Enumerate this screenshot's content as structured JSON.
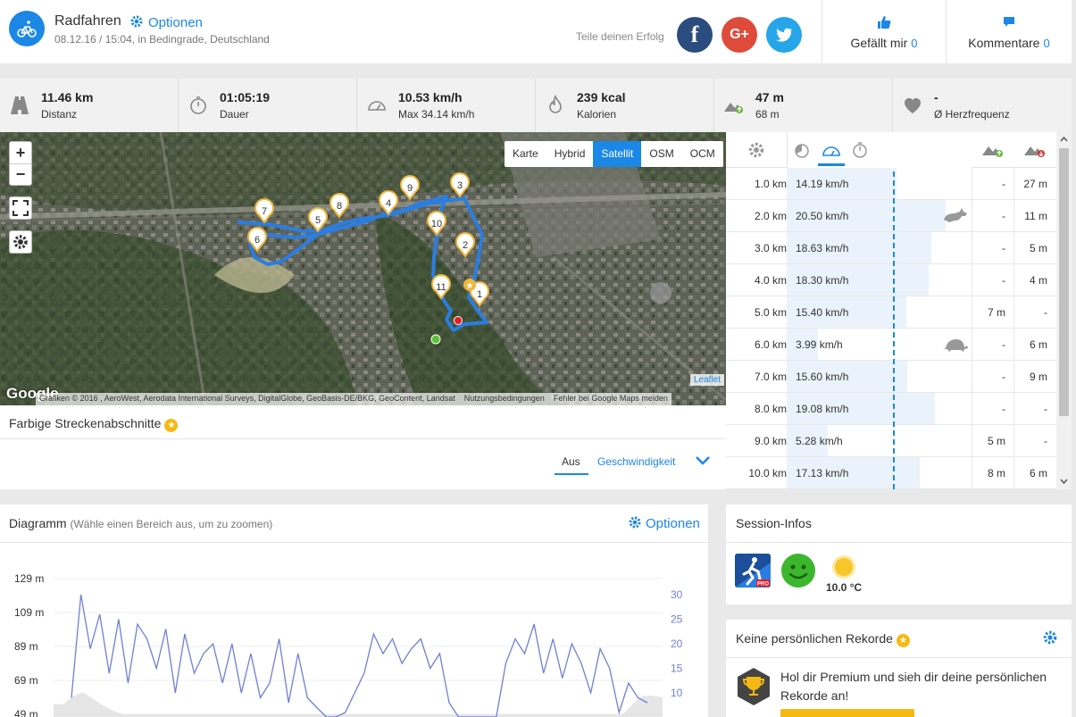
{
  "header": {
    "title": "Radfahren",
    "options_label": "Optionen",
    "subtitle": "08.12.16 / 15:04, in Bedingrade, Deutschland",
    "share_label": "Teile deinen Erfolg",
    "social": {
      "facebook": "f",
      "google": "G+",
      "twitter": "t"
    },
    "likes_label": "Gefällt mir",
    "likes_count": "0",
    "comments_label": "Kommentare",
    "comments_count": "0"
  },
  "stats": [
    {
      "icon": "road-icon",
      "value": "11.46 km",
      "label": "Distanz"
    },
    {
      "icon": "stopwatch-icon",
      "value": "01:05:19",
      "label": "Dauer"
    },
    {
      "icon": "speedometer-icon",
      "value": "10.53 km/h",
      "label": "Max 34.14 km/h"
    },
    {
      "icon": "flame-icon",
      "value": "239 kcal",
      "label": "Kalorien"
    },
    {
      "icon": "elevation-icon",
      "value": "47 m",
      "label": "68 m"
    },
    {
      "icon": "heart-icon",
      "value": "-",
      "label": "Ø Herzfrequenz"
    }
  ],
  "map": {
    "zoom_in": "+",
    "zoom_out": "−",
    "layers": [
      "Karte",
      "Hybrid",
      "Satellit",
      "OSM",
      "OCM"
    ],
    "active_layer": "Satellit",
    "markers": [
      "1",
      "2",
      "3",
      "4",
      "5",
      "6",
      "7",
      "8",
      "9",
      "10",
      "11"
    ],
    "google_logo": "Google",
    "attribution": "Grafiken © 2016 , AeroWest, Aerodata International Surveys, DigitalGlobe, GeoBasis-DE/BKG, GeoContent, Landsat",
    "terms": "Nutzungsbedingungen",
    "report": "Fehler bei Google Maps melden",
    "leaflet": "Leaflet"
  },
  "segments": {
    "title": "Farbige Streckenabschnitte",
    "star": "★",
    "tab_off": "Aus",
    "tab_speed": "Geschwindigkeit"
  },
  "splits": {
    "rows": [
      {
        "km": "1.0 km",
        "speed": "14.19 km/h",
        "speed_value": 14.19,
        "up": "-",
        "down": "27 m",
        "badge": ""
      },
      {
        "km": "2.0 km",
        "speed": "20.50 km/h",
        "speed_value": 20.5,
        "up": "-",
        "down": "11 m",
        "badge": "rabbit-icon"
      },
      {
        "km": "3.0 km",
        "speed": "18.63 km/h",
        "speed_value": 18.63,
        "up": "-",
        "down": "5 m",
        "badge": ""
      },
      {
        "km": "4.0 km",
        "speed": "18.30 km/h",
        "speed_value": 18.3,
        "up": "-",
        "down": "4 m",
        "badge": ""
      },
      {
        "km": "5.0 km",
        "speed": "15.40 km/h",
        "speed_value": 15.4,
        "up": "7 m",
        "down": "-",
        "badge": ""
      },
      {
        "km": "6.0 km",
        "speed": "3.99 km/h",
        "speed_value": 3.99,
        "up": "-",
        "down": "6 m",
        "badge": "turtle-icon"
      },
      {
        "km": "7.0 km",
        "speed": "15.60 km/h",
        "speed_value": 15.6,
        "up": "-",
        "down": "9 m",
        "badge": ""
      },
      {
        "km": "8.0 km",
        "speed": "19.08 km/h",
        "speed_value": 19.08,
        "up": "-",
        "down": "-",
        "badge": ""
      },
      {
        "km": "9.0 km",
        "speed": "5.28 km/h",
        "speed_value": 5.28,
        "up": "5 m",
        "down": "-",
        "badge": ""
      },
      {
        "km": "10.0 km",
        "speed": "17.13 km/h",
        "speed_value": 17.13,
        "up": "8 m",
        "down": "6 m",
        "badge": ""
      }
    ],
    "average_speed": 10.53
  },
  "diagram": {
    "title": "Diagramm",
    "hint": "(Wähle einen Bereich aus, um zu zoomen)",
    "options_label": "Optionen"
  },
  "chart_data": {
    "type": "line",
    "title": "",
    "left_ticks": [
      "129 m",
      "109 m",
      "89 m",
      "69 m",
      "49 m"
    ],
    "right_ticks": [
      "30",
      "25",
      "20",
      "15",
      "10"
    ],
    "left_ylim": [
      49,
      129
    ],
    "right_ylim": [
      10,
      30
    ],
    "series": [
      {
        "axis": "right",
        "color": "#6f7fd6",
        "values": [
          9,
          30,
          19,
          26,
          14,
          25,
          12,
          24,
          21,
          15,
          23,
          10,
          22,
          14,
          18,
          20,
          12,
          20,
          10,
          18,
          9,
          12,
          21,
          8,
          18,
          9,
          7,
          4,
          1,
          6,
          10,
          14,
          22,
          18,
          21,
          16,
          19,
          21,
          15,
          18,
          8,
          3,
          1,
          2,
          2,
          5,
          16,
          21,
          18,
          24,
          14,
          21,
          13,
          20,
          16,
          10,
          19,
          15,
          6,
          12,
          9,
          8
        ]
      }
    ],
    "elevation_area": {
      "axis": "left",
      "color": "#dcdcdc",
      "values": [
        55,
        55,
        60,
        62,
        58,
        54,
        51,
        49,
        49,
        49,
        49,
        49,
        49,
        49,
        49,
        49,
        49,
        49,
        49,
        49,
        49,
        49,
        49,
        49,
        49,
        49,
        49,
        49,
        49,
        49,
        49,
        49,
        49,
        49,
        49,
        49,
        49,
        49,
        49,
        49,
        49,
        49,
        49,
        49,
        49,
        49,
        49,
        49,
        49,
        49,
        49,
        49,
        49,
        49,
        49,
        49,
        49,
        49,
        55,
        60,
        60,
        59
      ]
    }
  },
  "session": {
    "title": "Session-Infos",
    "temperature": "10.0 °C",
    "app_badge": "PRO"
  },
  "records": {
    "title": "Keine persönlichen Rekorde",
    "text": "Hol dir Premium und sieh dir deine persönlichen Rekorde an!"
  }
}
